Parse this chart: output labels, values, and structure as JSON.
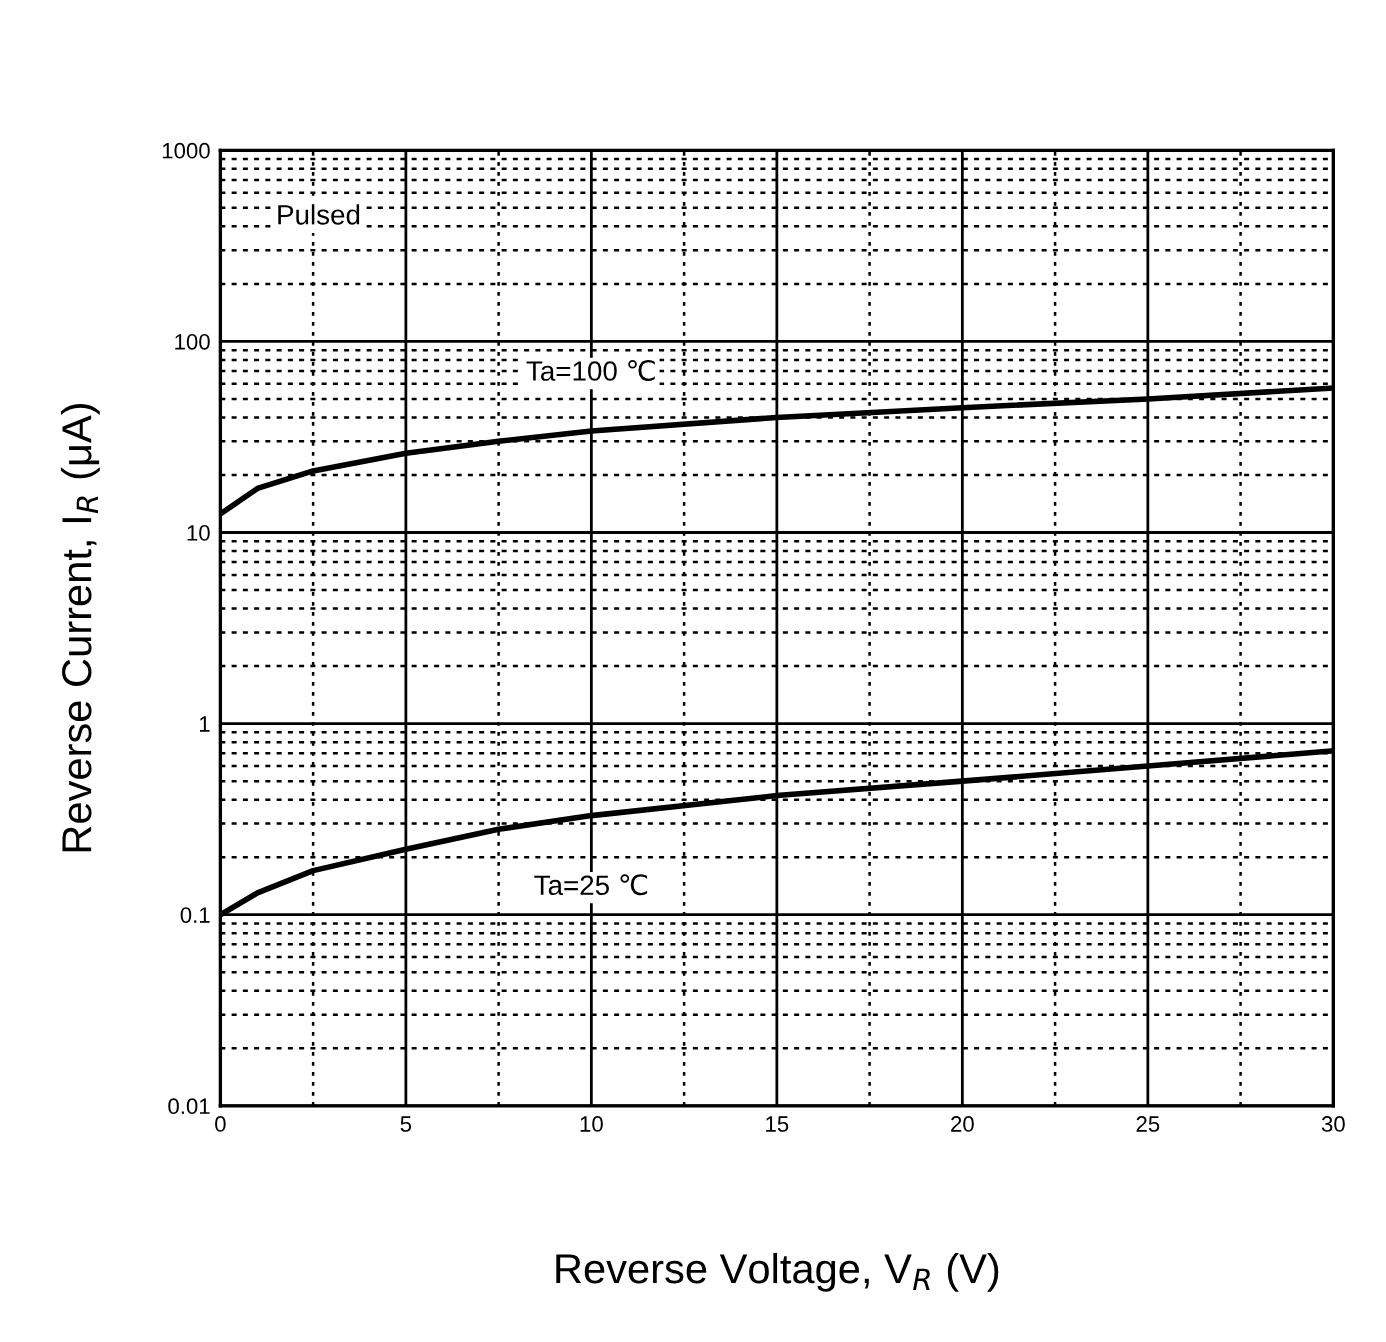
{
  "chart_data": {
    "type": "line",
    "xlabel": "Reverse Voltage, V$_{R}$ (V)",
    "ylabel": "Reverse Current, I$_{R}$ (μA)",
    "log": "y",
    "grid": true,
    "legend": false,
    "marker": "none",
    "line_style": "solid",
    "xlim": [
      0,
      30
    ],
    "xticks": [
      0,
      5,
      10,
      15,
      20,
      25,
      30
    ],
    "ylim": [
      0.01,
      1000
    ],
    "yticks": [
      0.01,
      0.1,
      1,
      10,
      100,
      1000
    ],
    "x": [
      0,
      1,
      2.5,
      5,
      7.5,
      10,
      15,
      20,
      25,
      30
    ],
    "series": [
      {
        "name": "Ta=100 ℃",
        "color": "#000000",
        "values": [
          12.5,
          17,
          21,
          26,
          30,
          34,
          40,
          45,
          50,
          57
        ]
      },
      {
        "name": "Ta=25 ℃",
        "color": "#000000",
        "values": [
          0.1,
          0.13,
          0.17,
          0.22,
          0.28,
          0.33,
          0.42,
          0.5,
          0.6,
          0.72
        ]
      }
    ],
    "annotations": [
      "Pulsed"
    ]
  }
}
